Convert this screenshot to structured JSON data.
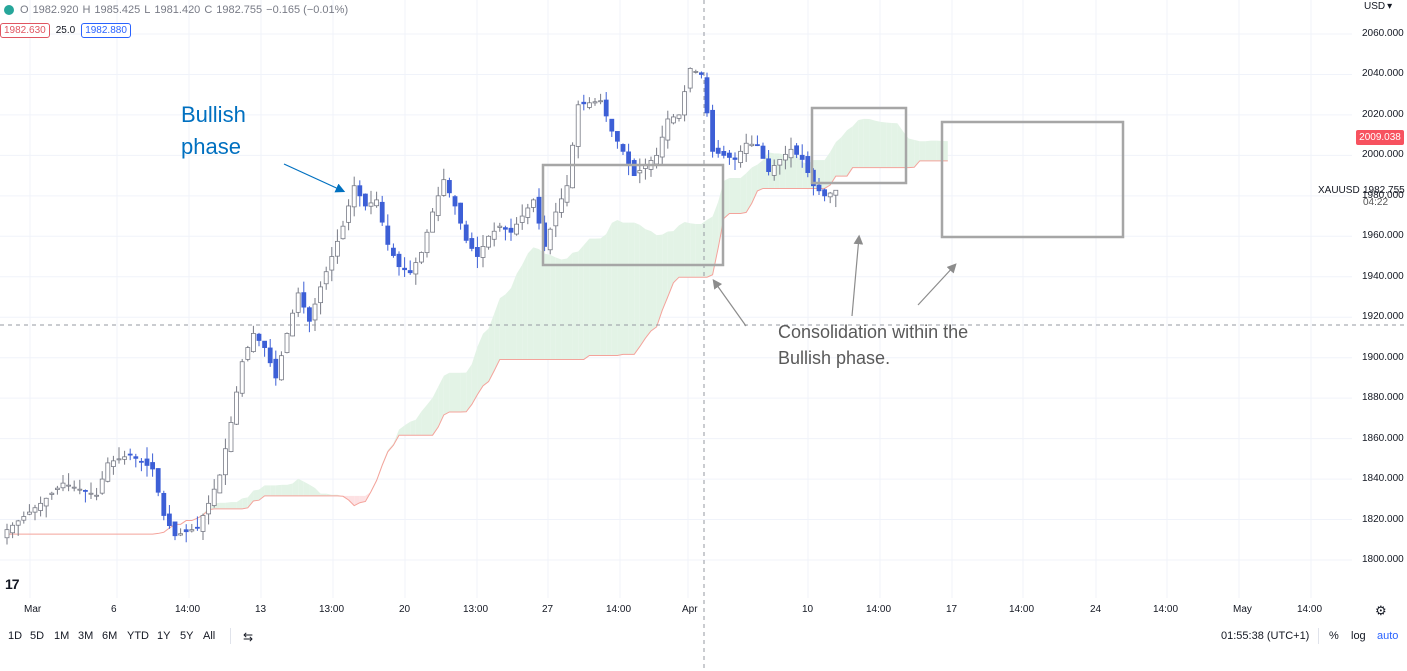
{
  "header": {
    "o_label": "O",
    "o_value": "1982.920",
    "h_label": "H",
    "h_value": "1985.425",
    "l_label": "L",
    "l_value": "1981.420",
    "c_label": "C",
    "c_value": "1982.755",
    "change": "−0.165 (−0.01%)",
    "indicator_left": "1982.630",
    "indicator_mid": "25.0",
    "indicator_right": "1982.880"
  },
  "price_axis": {
    "currency": "USD",
    "labels": [
      "2060.000",
      "2040.000",
      "2020.000",
      "2000.000",
      "1980.000",
      "1960.000",
      "1940.000",
      "1920.000",
      "1900.000",
      "1880.000",
      "1860.000",
      "1840.000",
      "1820.000",
      "1800.000"
    ],
    "badge_value": "2009.038",
    "symbol": "XAUUSD",
    "last_price": "1982.755",
    "countdown": "04:22"
  },
  "time_axis": {
    "labels": [
      "Mar",
      "6",
      "14:00",
      "13",
      "13:00",
      "20",
      "13:00",
      "27",
      "14:00",
      "Apr",
      "10",
      "14:00",
      "17",
      "14:00",
      "24",
      "14:00",
      "May",
      "14:00"
    ]
  },
  "annotations": {
    "bullish_line1": "Bullish",
    "bullish_line2": "phase",
    "consolidation_line1": "Consolidation within the",
    "consolidation_line2": "Bullish phase."
  },
  "toolbar": {
    "ranges": [
      "1D",
      "5D",
      "1M",
      "3M",
      "6M",
      "YTD",
      "1Y",
      "5Y",
      "All"
    ],
    "clock": "01:55:38 (UTC+1)",
    "percent": "%",
    "log": "log",
    "auto": "auto"
  },
  "logo": "17",
  "colors": {
    "bull_candle": "#ffffff",
    "bear_candle": "#3d5fd6",
    "cloud_green": "#e3f3e6",
    "cloud_red": "#fde1e3",
    "kijun_line": "#f4a39b",
    "annotation_blue": "#0070c0",
    "annotation_gray": "#595959",
    "box_gray": "#a6a6a6",
    "badge_red": "#f7525f"
  },
  "chart_data": {
    "type": "candlestick",
    "symbol": "XAUUSD",
    "ylim": [
      1793,
      2065
    ],
    "close_path": [
      [
        0,
        1815
      ],
      [
        6,
        1828
      ],
      [
        10,
        1838
      ],
      [
        16,
        1832
      ],
      [
        18,
        1848
      ],
      [
        22,
        1852
      ],
      [
        26,
        1845
      ],
      [
        28,
        1822
      ],
      [
        30,
        1812
      ],
      [
        34,
        1816
      ],
      [
        36,
        1828
      ],
      [
        38,
        1842
      ],
      [
        40,
        1868
      ],
      [
        42,
        1898
      ],
      [
        44,
        1912
      ],
      [
        46,
        1905
      ],
      [
        48,
        1890
      ],
      [
        50,
        1912
      ],
      [
        52,
        1932
      ],
      [
        54,
        1918
      ],
      [
        56,
        1935
      ],
      [
        58,
        1950
      ],
      [
        60,
        1965
      ],
      [
        62,
        1985
      ],
      [
        64,
        1975
      ],
      [
        66,
        1978
      ],
      [
        68,
        1956
      ],
      [
        70,
        1945
      ],
      [
        72,
        1942
      ],
      [
        74,
        1952
      ],
      [
        76,
        1972
      ],
      [
        78,
        1988
      ],
      [
        80,
        1975
      ],
      [
        82,
        1958
      ],
      [
        84,
        1950
      ],
      [
        86,
        1960
      ],
      [
        88,
        1965
      ],
      [
        90,
        1962
      ],
      [
        92,
        1970
      ],
      [
        94,
        1978
      ],
      [
        96,
        1955
      ],
      [
        98,
        1972
      ],
      [
        100,
        1985
      ],
      [
        102,
        2025
      ],
      [
        106,
        2027
      ],
      [
        108,
        2012
      ],
      [
        110,
        2002
      ],
      [
        112,
        1990
      ],
      [
        114,
        1995
      ],
      [
        116,
        2000
      ],
      [
        118,
        2018
      ],
      [
        120,
        2020
      ],
      [
        122,
        2043
      ],
      [
        124,
        2040
      ],
      [
        126,
        2002
      ],
      [
        128,
        2000
      ],
      [
        130,
        1998
      ],
      [
        132,
        2006
      ],
      [
        134,
        2005
      ],
      [
        136,
        1992
      ],
      [
        138,
        1998
      ],
      [
        140,
        2003
      ],
      [
        142,
        1998
      ],
      [
        144,
        1985
      ],
      [
        146,
        1980
      ],
      [
        148,
        1982.755
      ]
    ]
  }
}
